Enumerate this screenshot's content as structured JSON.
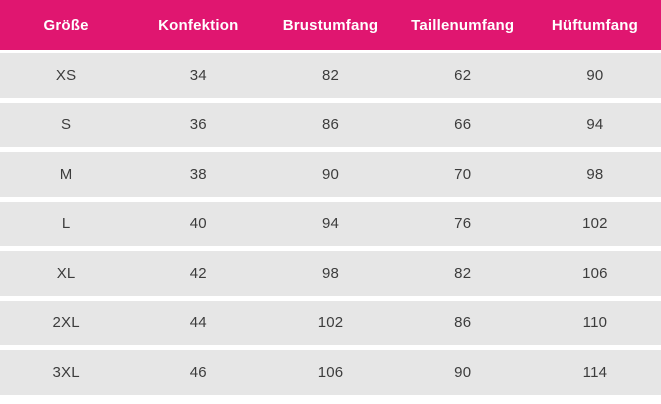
{
  "chart_data": {
    "type": "table",
    "columns": [
      "Größe",
      "Konfektion",
      "Brustumfang",
      "Taillenumfang",
      "Hüftumfang"
    ],
    "rows": [
      [
        "XS",
        "34",
        "82",
        "62",
        "90"
      ],
      [
        "S",
        "36",
        "86",
        "66",
        "94"
      ],
      [
        "M",
        "38",
        "90",
        "70",
        "98"
      ],
      [
        "L",
        "40",
        "94",
        "76",
        "102"
      ],
      [
        "XL",
        "42",
        "98",
        "82",
        "106"
      ],
      [
        "2XL",
        "44",
        "102",
        "86",
        "110"
      ],
      [
        "3XL",
        "46",
        "106",
        "90",
        "114"
      ]
    ]
  },
  "colors": {
    "header_bg": "#e01670",
    "header_text": "#ffffff",
    "row_bg": "#e6e6e6",
    "cell_text": "#3c3c3c",
    "separator": "#ffffff"
  }
}
